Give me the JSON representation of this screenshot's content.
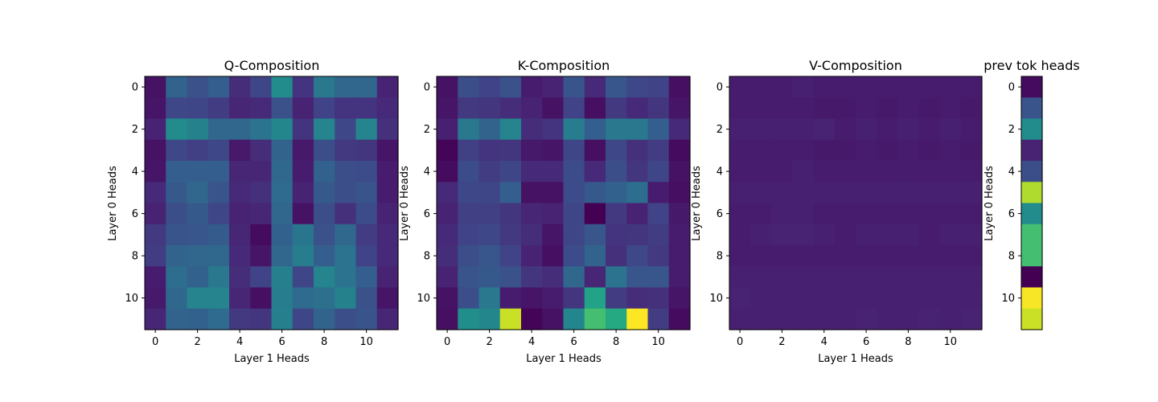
{
  "chart_data": [
    {
      "type": "heatmap",
      "title": "Q-Composition",
      "xlabel": "Layer 1 Heads",
      "ylabel": "Layer 0 Heads",
      "xticks": [
        "0",
        "2",
        "4",
        "6",
        "8",
        "10"
      ],
      "yticks": [
        "0",
        "2",
        "4",
        "6",
        "8",
        "10"
      ],
      "colormap": "viridis",
      "values": [
        [
          0.05,
          0.32,
          0.25,
          0.3,
          0.13,
          0.21,
          0.48,
          0.15,
          0.4,
          0.33,
          0.33,
          0.1
        ],
        [
          0.06,
          0.22,
          0.21,
          0.18,
          0.11,
          0.12,
          0.25,
          0.1,
          0.2,
          0.15,
          0.15,
          0.12
        ],
        [
          0.1,
          0.48,
          0.44,
          0.33,
          0.33,
          0.38,
          0.46,
          0.15,
          0.45,
          0.22,
          0.45,
          0.14
        ],
        [
          0.05,
          0.22,
          0.19,
          0.22,
          0.07,
          0.13,
          0.32,
          0.07,
          0.24,
          0.17,
          0.16,
          0.06
        ],
        [
          0.06,
          0.3,
          0.3,
          0.3,
          0.11,
          0.11,
          0.34,
          0.08,
          0.31,
          0.24,
          0.23,
          0.08
        ],
        [
          0.12,
          0.28,
          0.33,
          0.26,
          0.12,
          0.14,
          0.35,
          0.1,
          0.28,
          0.24,
          0.26,
          0.08
        ],
        [
          0.1,
          0.24,
          0.28,
          0.21,
          0.1,
          0.11,
          0.33,
          0.05,
          0.24,
          0.14,
          0.23,
          0.1
        ],
        [
          0.17,
          0.26,
          0.27,
          0.29,
          0.11,
          0.03,
          0.31,
          0.39,
          0.25,
          0.34,
          0.18,
          0.12
        ],
        [
          0.18,
          0.32,
          0.33,
          0.34,
          0.12,
          0.06,
          0.33,
          0.42,
          0.3,
          0.38,
          0.2,
          0.12
        ],
        [
          0.08,
          0.36,
          0.31,
          0.4,
          0.13,
          0.2,
          0.43,
          0.21,
          0.45,
          0.38,
          0.3,
          0.1
        ],
        [
          0.07,
          0.34,
          0.45,
          0.45,
          0.11,
          0.04,
          0.42,
          0.35,
          0.37,
          0.44,
          0.25,
          0.06
        ],
        [
          0.11,
          0.32,
          0.31,
          0.35,
          0.17,
          0.16,
          0.43,
          0.21,
          0.32,
          0.24,
          0.26,
          0.11
        ]
      ]
    },
    {
      "type": "heatmap",
      "title": "K-Composition",
      "xlabel": "Layer 1 Heads",
      "ylabel": "Layer 0 Heads",
      "xticks": [
        "0",
        "2",
        "4",
        "6",
        "8",
        "10"
      ],
      "yticks": [
        "0",
        "2",
        "4",
        "6",
        "8",
        "10"
      ],
      "colormap": "viridis",
      "values": [
        [
          0.05,
          0.24,
          0.2,
          0.25,
          0.08,
          0.1,
          0.26,
          0.12,
          0.27,
          0.22,
          0.2,
          0.04
        ],
        [
          0.06,
          0.17,
          0.16,
          0.13,
          0.1,
          0.05,
          0.2,
          0.04,
          0.17,
          0.12,
          0.16,
          0.06
        ],
        [
          0.09,
          0.4,
          0.32,
          0.45,
          0.13,
          0.15,
          0.42,
          0.3,
          0.4,
          0.4,
          0.3,
          0.12
        ],
        [
          0.01,
          0.19,
          0.15,
          0.16,
          0.07,
          0.06,
          0.21,
          0.04,
          0.22,
          0.14,
          0.18,
          0.03
        ],
        [
          0.03,
          0.23,
          0.18,
          0.21,
          0.12,
          0.12,
          0.23,
          0.12,
          0.24,
          0.16,
          0.21,
          0.05
        ],
        [
          0.12,
          0.22,
          0.21,
          0.3,
          0.05,
          0.05,
          0.23,
          0.28,
          0.31,
          0.36,
          0.08,
          0.04
        ],
        [
          0.1,
          0.19,
          0.19,
          0.16,
          0.11,
          0.1,
          0.21,
          0.0,
          0.17,
          0.1,
          0.2,
          0.07
        ],
        [
          0.12,
          0.2,
          0.22,
          0.17,
          0.13,
          0.06,
          0.21,
          0.27,
          0.15,
          0.16,
          0.18,
          0.08
        ],
        [
          0.13,
          0.24,
          0.27,
          0.2,
          0.1,
          0.04,
          0.23,
          0.32,
          0.14,
          0.22,
          0.17,
          0.08
        ],
        [
          0.1,
          0.26,
          0.28,
          0.25,
          0.16,
          0.13,
          0.33,
          0.11,
          0.38,
          0.27,
          0.27,
          0.08
        ],
        [
          0.05,
          0.24,
          0.4,
          0.08,
          0.06,
          0.08,
          0.16,
          0.58,
          0.18,
          0.13,
          0.14,
          0.06
        ],
        [
          0.04,
          0.49,
          0.46,
          0.92,
          0.01,
          0.05,
          0.46,
          0.7,
          0.61,
          1.0,
          0.18,
          0.03
        ]
      ]
    },
    {
      "type": "heatmap",
      "title": "V-Composition",
      "xlabel": "Layer 1 Heads",
      "ylabel": "Layer 0 Heads",
      "xticks": [
        "0",
        "2",
        "4",
        "6",
        "8",
        "10"
      ],
      "yticks": [
        "0",
        "2",
        "4",
        "6",
        "8",
        "10"
      ],
      "colormap": "viridis",
      "values": [
        [
          0.08,
          0.08,
          0.08,
          0.09,
          0.08,
          0.08,
          0.08,
          0.08,
          0.08,
          0.08,
          0.08,
          0.08
        ],
        [
          0.08,
          0.08,
          0.08,
          0.08,
          0.07,
          0.07,
          0.08,
          0.07,
          0.08,
          0.07,
          0.08,
          0.07
        ],
        [
          0.09,
          0.09,
          0.09,
          0.09,
          0.1,
          0.08,
          0.09,
          0.08,
          0.09,
          0.08,
          0.09,
          0.08
        ],
        [
          0.08,
          0.08,
          0.08,
          0.08,
          0.07,
          0.07,
          0.08,
          0.07,
          0.08,
          0.07,
          0.08,
          0.07
        ],
        [
          0.08,
          0.08,
          0.08,
          0.09,
          0.08,
          0.08,
          0.08,
          0.08,
          0.08,
          0.08,
          0.08,
          0.08
        ],
        [
          0.09,
          0.09,
          0.09,
          0.09,
          0.09,
          0.09,
          0.09,
          0.09,
          0.09,
          0.09,
          0.09,
          0.09
        ],
        [
          0.08,
          0.08,
          0.09,
          0.09,
          0.08,
          0.08,
          0.08,
          0.08,
          0.08,
          0.08,
          0.08,
          0.08
        ],
        [
          0.08,
          0.09,
          0.1,
          0.1,
          0.09,
          0.08,
          0.09,
          0.09,
          0.09,
          0.08,
          0.09,
          0.09
        ],
        [
          0.08,
          0.08,
          0.08,
          0.08,
          0.08,
          0.08,
          0.08,
          0.08,
          0.08,
          0.08,
          0.08,
          0.08
        ],
        [
          0.09,
          0.09,
          0.09,
          0.09,
          0.09,
          0.09,
          0.09,
          0.09,
          0.09,
          0.09,
          0.09,
          0.09
        ],
        [
          0.1,
          0.09,
          0.09,
          0.09,
          0.09,
          0.09,
          0.09,
          0.09,
          0.09,
          0.09,
          0.09,
          0.09
        ],
        [
          0.09,
          0.09,
          0.09,
          0.09,
          0.09,
          0.09,
          0.1,
          0.09,
          0.09,
          0.1,
          0.09,
          0.1
        ]
      ]
    },
    {
      "type": "heatmap",
      "title": "prev tok heads",
      "ylabel": "Layer 0 Heads",
      "yticks": [
        "0",
        "2",
        "4",
        "6",
        "8",
        "10"
      ],
      "colormap": "viridis",
      "values": [
        [
          0.03
        ],
        [
          0.26
        ],
        [
          0.48
        ],
        [
          0.1
        ],
        [
          0.24
        ],
        [
          0.88
        ],
        [
          0.48
        ],
        [
          0.7
        ],
        [
          0.7
        ],
        [
          0.0
        ],
        [
          0.99
        ],
        [
          0.92
        ]
      ]
    }
  ]
}
